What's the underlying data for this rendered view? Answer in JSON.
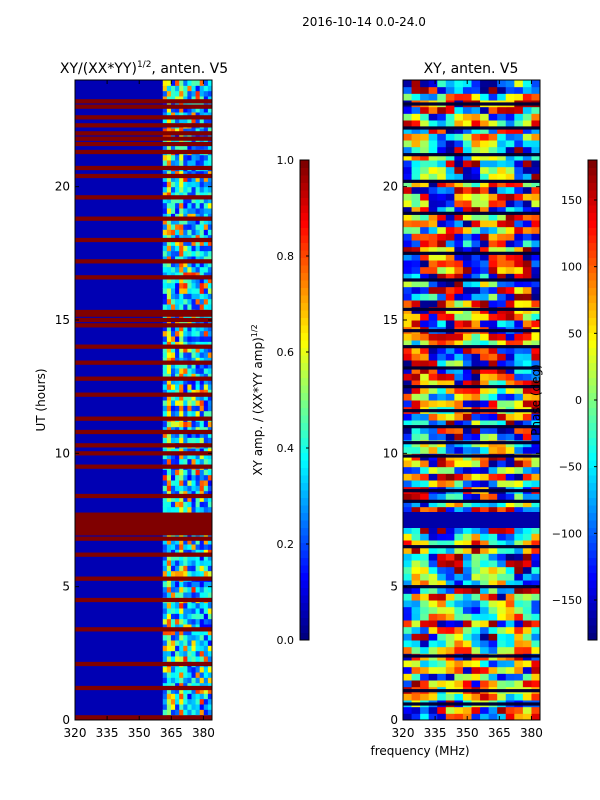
{
  "figure": {
    "suptitle": "2016-10-14 0.0-24.0",
    "xlabel_common": "frequency (MHz)"
  },
  "chart_data": [
    {
      "type": "heatmap",
      "id": "left",
      "title_main": "XY/(XX*YY)",
      "title_sup": "1/2",
      "title_tail": ", anten. V5",
      "xlabel": "",
      "ylabel": "UT (hours)",
      "xlim": [
        320,
        384
      ],
      "ylim": [
        0,
        24
      ],
      "x_ticks": [
        320,
        335,
        350,
        365,
        380
      ],
      "x_tick_labels": [
        "320",
        "335",
        "350",
        "365",
        "380"
      ],
      "y_ticks": [
        0,
        5,
        10,
        15,
        20
      ],
      "y_tick_labels": [
        "0",
        "5",
        "10",
        "15",
        "20"
      ],
      "colormap": "jet",
      "description_of_values": "normalized XY amplitude; mostly ~0.05 below 360 MHz, 0.2-0.6 bands at 360-380 MHz, flagged rows saturated at 1.0",
      "saturated_rows_hours": [
        0.1,
        1.2,
        2.1,
        3.4,
        4.5,
        5.3,
        6.2,
        6.8,
        7.0,
        7.1,
        7.2,
        7.3,
        7.4,
        7.5,
        7.6,
        7.7,
        8.4,
        9.5,
        10.0,
        10.3,
        10.8,
        11.3,
        12.2,
        12.8,
        13.4,
        14.0,
        14.8,
        15.0,
        15.2,
        15.3,
        16.6,
        17.2,
        18.0,
        18.8,
        19.6,
        20.4,
        20.7,
        21.3,
        21.6,
        21.8,
        22.0,
        22.3,
        22.6,
        23.0,
        23.2
      ]
    },
    {
      "type": "heatmap",
      "id": "right",
      "title": "XY, anten. V5",
      "xlabel": "",
      "ylabel": "",
      "xlim": [
        320,
        384
      ],
      "ylim": [
        0,
        24
      ],
      "x_ticks": [
        320,
        335,
        350,
        365,
        380
      ],
      "x_tick_labels": [
        "320",
        "335",
        "350",
        "365",
        "380"
      ],
      "y_ticks": [
        0,
        5,
        10,
        15,
        20
      ],
      "y_tick_labels": [
        "0",
        "5",
        "10",
        "15",
        "20"
      ],
      "colormap": "jet",
      "description_of_values": "XY phase in degrees, noisy spanning -180..180, flagged band 7.3-7.8 h dark",
      "blank_rows_hours": [
        0.6,
        1.1,
        2.4,
        5.0,
        6.5,
        7.4,
        7.5,
        7.6,
        7.7,
        8.2,
        8.6,
        9.9,
        10.4,
        11.0,
        11.6,
        12.5,
        13.2,
        14.0,
        14.6,
        15.4,
        16.5,
        17.5,
        19.0,
        20.2,
        21.2,
        22.2,
        23.1
      ]
    },
    {
      "type": "colorbar",
      "id": "amp-colorbar",
      "label_main": "XY amp. / (XX*YY amp)",
      "label_sup": "1/2",
      "lim": [
        0.0,
        1.0
      ],
      "ticks": [
        0.0,
        0.2,
        0.4,
        0.6,
        0.8,
        1.0
      ],
      "tick_labels": [
        "0.0",
        "0.2",
        "0.4",
        "0.6",
        "0.8",
        "1.0"
      ],
      "colormap": "jet"
    },
    {
      "type": "colorbar",
      "id": "phase-colorbar",
      "label": "Phase (deg)",
      "lim": [
        -180,
        180
      ],
      "ticks": [
        -150,
        -100,
        -50,
        0,
        50,
        100,
        150
      ],
      "tick_labels": [
        "−150",
        "−100",
        "−50",
        "0",
        "50",
        "100",
        "150"
      ],
      "colormap": "jet"
    }
  ]
}
